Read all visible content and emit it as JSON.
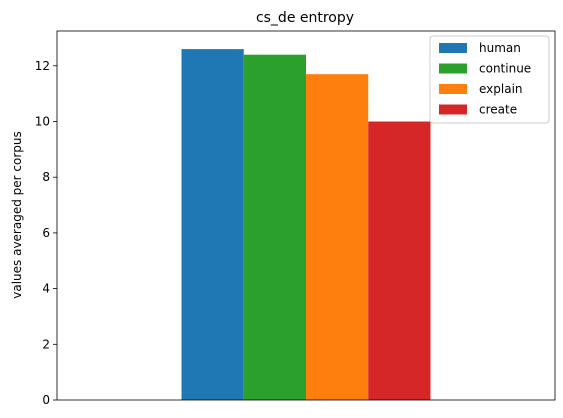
{
  "chart_data": {
    "type": "bar",
    "title": "cs_de entropy",
    "xlabel": "",
    "ylabel": "values averaged per corpus",
    "ylim": [
      0,
      13.25
    ],
    "yticks": [
      0,
      2,
      4,
      6,
      8,
      10,
      12
    ],
    "grid": false,
    "legend": "top-right",
    "categories": [
      ""
    ],
    "series": [
      {
        "name": "human",
        "values": [
          12.6
        ],
        "color": "#1f77b4"
      },
      {
        "name": "continue",
        "values": [
          12.4
        ],
        "color": "#2ca02c"
      },
      {
        "name": "explain",
        "values": [
          11.7
        ],
        "color": "#ff7f0e"
      },
      {
        "name": "create",
        "values": [
          10.0
        ],
        "color": "#d62728"
      }
    ]
  }
}
